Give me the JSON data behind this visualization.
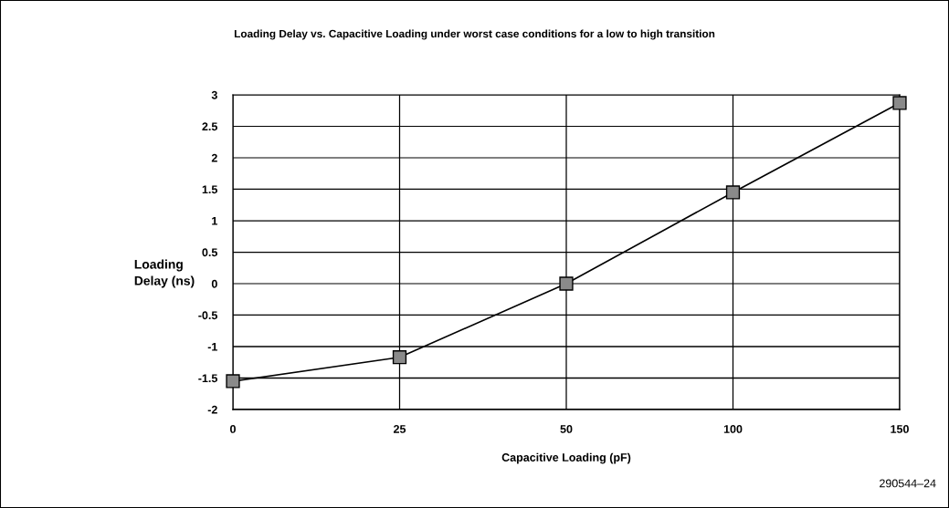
{
  "chart_data": {
    "type": "line",
    "title": "Loading Delay vs. Capacitive Loading under worst case conditions for a low to high transition",
    "xlabel": "Capacitive Loading (pF)",
    "ylabel": "Loading\nDelay (ns)",
    "categories": [
      "0",
      "25",
      "50",
      "100",
      "150"
    ],
    "series": [
      {
        "color": "#000000",
        "values": [
          -1.55,
          -1.17,
          0,
          1.45,
          2.87
        ]
      }
    ],
    "ylim": [
      -2,
      3
    ],
    "yticks": [
      -2,
      -1.5,
      -1,
      -0.5,
      0,
      0.5,
      1,
      1.5,
      2,
      2.5,
      3
    ],
    "grid": true,
    "marker": "square",
    "line_style": "solid",
    "legend": false,
    "annotations": [
      "290544–24"
    ]
  }
}
